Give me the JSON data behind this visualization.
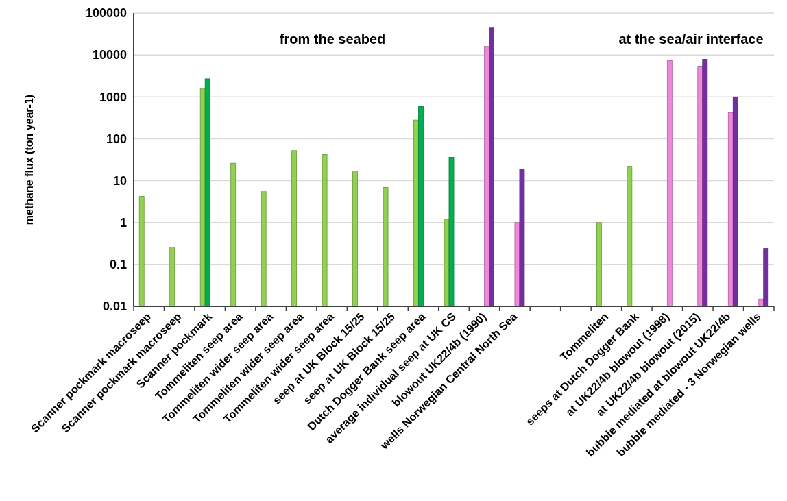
{
  "chart_data": {
    "type": "bar",
    "ylabel": "methane flux (ton year-1)",
    "log": true,
    "grid": "y",
    "annotations": [
      "from the seabed",
      "at the sea/air interface"
    ],
    "categories": [
      "Scanner pockmark macroseep",
      "Scanner pockmark macroseep",
      "Scanner pockmark",
      "Tommeliten seep area",
      "Tommeliten wider seep area",
      "Tommeliten wider seep area",
      "Tommeliten wider seep area",
      "seep at UK Block 15/25",
      "seep at UK Block 15/25",
      "Dutch Dogger Bank seep area",
      "average individual seep at UK CS",
      "blowout UK22/4b (1990)",
      "wells Norwegian Central North Sea",
      null,
      null,
      "Tommeliten",
      "seeps at Dutch Dogger Bank",
      "at UK22/4b blowout (1998)",
      "at UK22/4b blowout (2015)",
      "bubble mediated at blowout UK22/4b",
      "bubble mediated - 3 Norwegian wells"
    ],
    "ylim": [
      0.01,
      100000
    ],
    "yticks": [
      0.01,
      0.1,
      1,
      10,
      100,
      1000,
      10000,
      100000
    ],
    "series": [
      {
        "color": "#92d050",
        "values": [
          4.2,
          0.26,
          1600,
          26,
          5.7,
          52,
          42,
          17,
          6.9,
          280,
          1.2,
          null,
          null,
          null,
          null,
          1.0,
          22,
          null,
          null,
          null,
          null
        ]
      },
      {
        "color": "#00b050",
        "values": [
          null,
          null,
          2700,
          null,
          null,
          null,
          null,
          null,
          null,
          590,
          36,
          null,
          null,
          null,
          null,
          null,
          null,
          null,
          null,
          null,
          null
        ]
      },
      {
        "color": "#f286d8",
        "values": [
          null,
          null,
          null,
          null,
          null,
          null,
          null,
          null,
          null,
          null,
          null,
          16000,
          1.0,
          null,
          null,
          null,
          null,
          7300,
          5200,
          420,
          0.015
        ]
      },
      {
        "color": "#7030a0",
        "values": [
          null,
          null,
          null,
          null,
          null,
          null,
          null,
          null,
          null,
          null,
          null,
          44000,
          19,
          null,
          null,
          null,
          null,
          null,
          7900,
          1000,
          0.24
        ]
      }
    ]
  }
}
